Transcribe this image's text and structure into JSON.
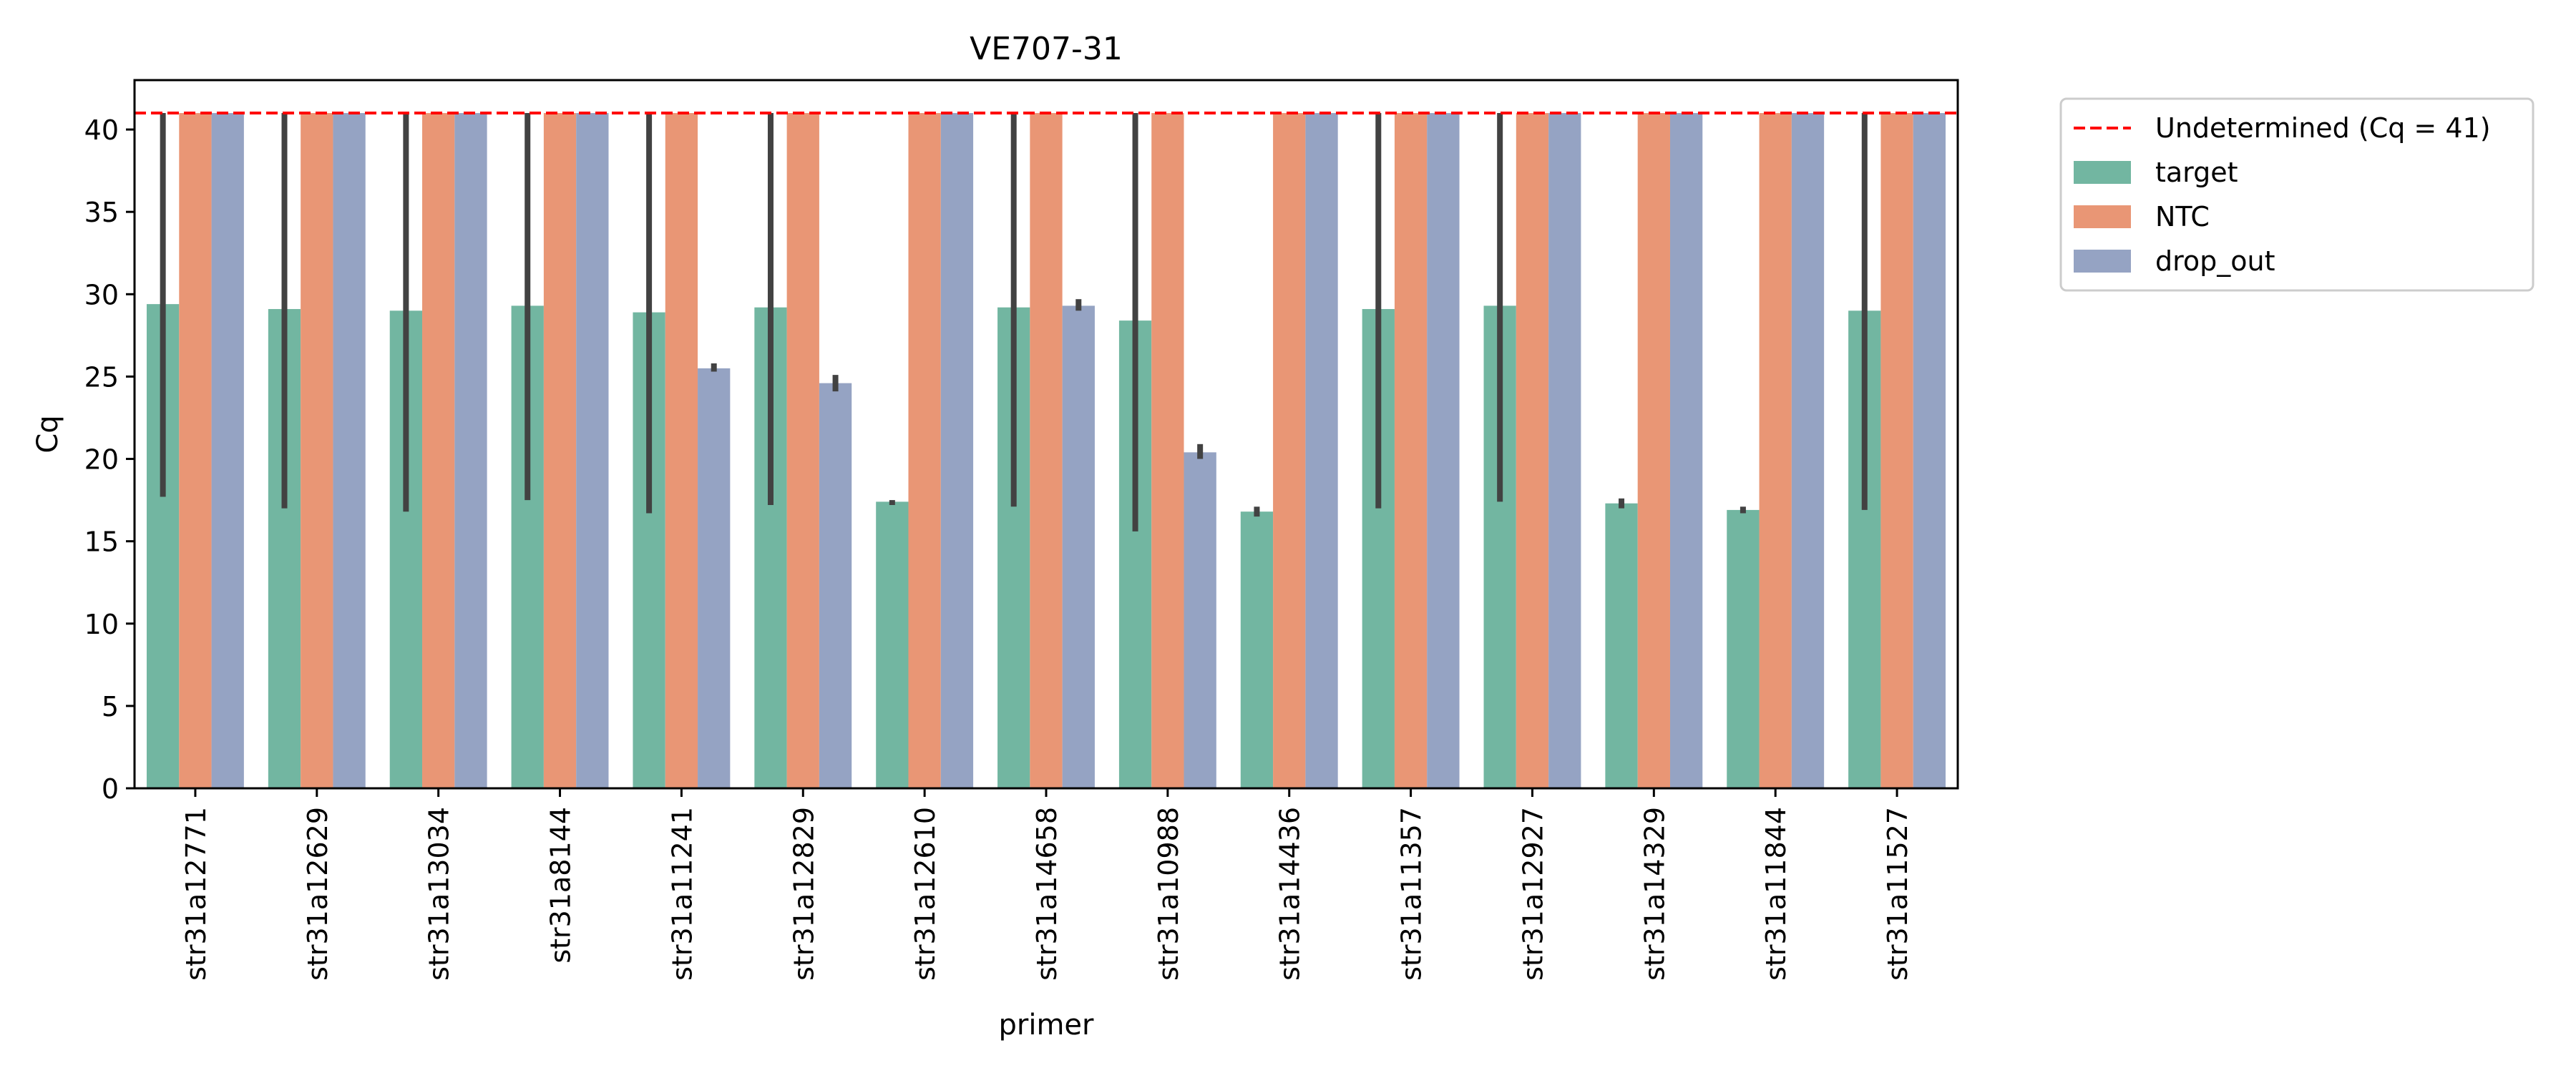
{
  "chart_data": {
    "type": "bar",
    "title": "VE707-31",
    "xlabel": "primer",
    "ylabel": "Cq",
    "ylim": [
      0,
      43
    ],
    "yticks": [
      0,
      5,
      10,
      15,
      20,
      25,
      30,
      35,
      40
    ],
    "grid": false,
    "legend_placement": "outside-top-right",
    "categories": [
      "str31a12771",
      "str31a12629",
      "str31a13034",
      "str31a8144",
      "str31a11241",
      "str31a12829",
      "str31a12610",
      "str31a14658",
      "str31a10988",
      "str31a14436",
      "str31a11357",
      "str31a12927",
      "str31a14329",
      "str31a11844",
      "str31a11527"
    ],
    "series": [
      {
        "name": "target",
        "color": "#72b6a1",
        "values": [
          29.4,
          29.1,
          29.0,
          29.3,
          28.9,
          29.2,
          17.4,
          29.2,
          28.4,
          16.8,
          29.1,
          29.3,
          17.3,
          16.9,
          29.0
        ],
        "err_low": [
          17.7,
          17.0,
          16.8,
          17.5,
          16.7,
          17.2,
          17.2,
          17.1,
          15.6,
          16.5,
          17.0,
          17.4,
          17.0,
          16.7,
          16.9
        ],
        "err_high": [
          41.0,
          41.0,
          41.0,
          41.0,
          41.0,
          41.0,
          17.5,
          41.0,
          41.0,
          17.1,
          41.0,
          41.0,
          17.6,
          17.1,
          41.0
        ]
      },
      {
        "name": "NTC",
        "color": "#e99675",
        "values": [
          41,
          41,
          41,
          41,
          41,
          41,
          41,
          41,
          41,
          41,
          41,
          41,
          41,
          41,
          41
        ],
        "err_low": [
          41,
          41,
          41,
          41,
          41,
          41,
          41,
          41,
          41,
          41,
          41,
          41,
          41,
          41,
          41
        ],
        "err_high": [
          41,
          41,
          41,
          41,
          41,
          41,
          41,
          41,
          41,
          41,
          41,
          41,
          41,
          41,
          41
        ]
      },
      {
        "name": "drop_out",
        "color": "#95a3c3",
        "values": [
          41,
          41,
          41,
          41,
          25.5,
          24.6,
          41,
          29.3,
          20.4,
          41,
          41,
          41,
          41,
          41,
          41
        ],
        "err_low": [
          41,
          41,
          41,
          41,
          25.3,
          24.1,
          41,
          29.0,
          20.0,
          41,
          41,
          41,
          41,
          41,
          41
        ],
        "err_high": [
          41,
          41,
          41,
          41,
          25.8,
          25.1,
          41,
          29.7,
          20.9,
          41,
          41,
          41,
          41,
          41,
          41
        ]
      }
    ],
    "reference_line": {
      "label": "Undetermined (Cq = 41)",
      "y": 41,
      "color": "#ff0000",
      "style": "dashed"
    }
  }
}
